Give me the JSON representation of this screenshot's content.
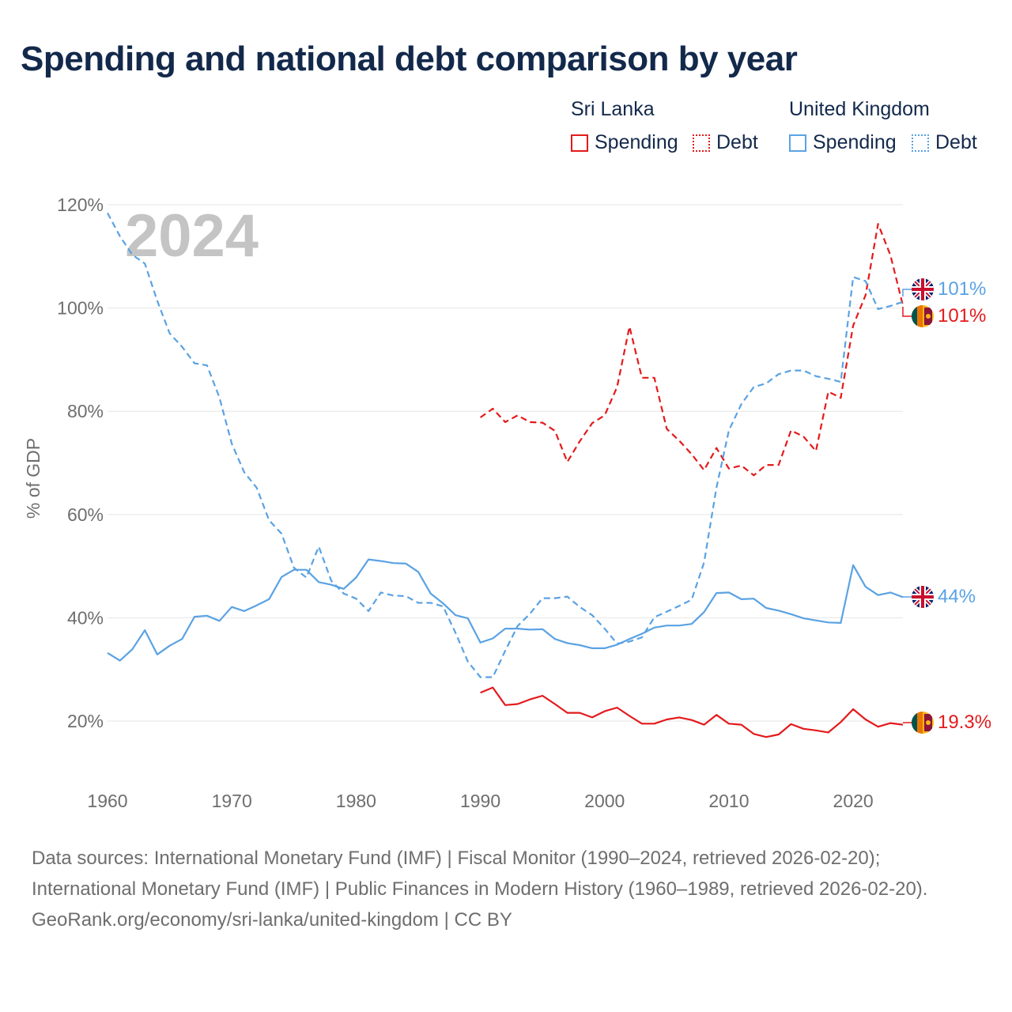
{
  "title": "Spending and national debt comparison by year",
  "legend": {
    "groups": [
      {
        "country": "Sri Lanka",
        "items": [
          {
            "label": "Spending",
            "style": "solid"
          },
          {
            "label": "Debt",
            "style": "dotted"
          }
        ],
        "color": "#e41a1c"
      },
      {
        "country": "United Kingdom",
        "items": [
          {
            "label": "Spending",
            "style": "solid"
          },
          {
            "label": "Debt",
            "style": "dotted"
          }
        ],
        "color": "#5aa2e3"
      }
    ]
  },
  "chart_data": {
    "type": "line",
    "ylabel": "% of GDP",
    "xlabel": "",
    "year_watermark": "2024",
    "xlim": [
      1960,
      2024
    ],
    "ylim": [
      10,
      120
    ],
    "x_ticks": [
      1960,
      1970,
      1980,
      1990,
      2000,
      2010,
      2020
    ],
    "y_ticks": [
      20,
      40,
      60,
      80,
      100,
      120
    ],
    "y_tick_labels": [
      "20%",
      "40%",
      "60%",
      "80%",
      "100%",
      "120%"
    ],
    "grid": true,
    "series": [
      {
        "name": "Sri Lanka Spending",
        "country": "Sri Lanka",
        "measure": "Spending",
        "color": "#e41a1c",
        "style": "solid",
        "start_year": 1990,
        "values": [
          25.5,
          26.5,
          23.1,
          23.3,
          24.2,
          24.9,
          23.3,
          21.6,
          21.6,
          20.7,
          21.9,
          22.6,
          21.0,
          19.5,
          19.5,
          20.3,
          20.7,
          20.2,
          19.3,
          21.2,
          19.5,
          19.3,
          17.5,
          16.9,
          17.4,
          19.4,
          18.5,
          18.2,
          17.8,
          19.8,
          22.3,
          20.3,
          18.9,
          19.6,
          19.3
        ],
        "end_label": "19.3%",
        "flag": "sri-lanka-flag-icon"
      },
      {
        "name": "Sri Lanka Debt",
        "country": "Sri Lanka",
        "measure": "Debt",
        "color": "#e41a1c",
        "style": "dashed",
        "start_year": 1990,
        "values": [
          78.8,
          80.5,
          77.9,
          79.2,
          77.9,
          77.8,
          76.2,
          70.2,
          74.2,
          77.7,
          79.2,
          84.7,
          96.4,
          86.5,
          86.5,
          76.6,
          74.3,
          71.7,
          68.6,
          72.9,
          68.9,
          69.5,
          67.6,
          69.6,
          69.6,
          76.3,
          75.1,
          72.3,
          83.8,
          82.6,
          96.6,
          102.5,
          116.3,
          110.2,
          100.5
        ],
        "end_label": "101%",
        "flag": "sri-lanka-flag-icon"
      },
      {
        "name": "United Kingdom Spending",
        "country": "United Kingdom",
        "measure": "Spending",
        "color": "#5aa2e3",
        "style": "solid",
        "start_year": 1960,
        "values": [
          33.2,
          31.7,
          33.9,
          37.6,
          32.9,
          34.6,
          35.9,
          40.2,
          40.4,
          39.4,
          42.1,
          41.3,
          42.4,
          43.6,
          47.9,
          49.3,
          49.3,
          46.9,
          46.4,
          45.6,
          47.8,
          51.3,
          51.0,
          50.6,
          50.5,
          48.9,
          44.7,
          42.8,
          40.5,
          39.9,
          35.2,
          36.0,
          37.9,
          37.9,
          37.7,
          37.8,
          35.9,
          35.1,
          34.7,
          34.1,
          34.1,
          34.8,
          35.9,
          36.9,
          38.1,
          38.5,
          38.5,
          38.8,
          41.1,
          44.8,
          44.9,
          43.6,
          43.7,
          41.9,
          41.4,
          40.7,
          39.9,
          39.5,
          39.1,
          39.0,
          50.2,
          46.0,
          44.4,
          44.9,
          44.0
        ],
        "end_label": "44%",
        "flag": "united-kingdom-flag-icon"
      },
      {
        "name": "United Kingdom Debt",
        "country": "United Kingdom",
        "measure": "Debt",
        "color": "#5aa2e3",
        "style": "dashed",
        "start_year": 1960,
        "values": [
          118.4,
          113.9,
          110.3,
          108.6,
          101.4,
          95.1,
          92.5,
          89.3,
          88.9,
          82.7,
          73.7,
          68.2,
          65.2,
          58.9,
          56.3,
          49.7,
          47.8,
          53.8,
          47.2,
          44.7,
          43.7,
          41.3,
          44.9,
          44.3,
          44.2,
          42.9,
          42.9,
          42.2,
          37.1,
          31.5,
          28.5,
          28.5,
          33.6,
          38.4,
          40.8,
          43.8,
          43.8,
          44.1,
          42.1,
          40.5,
          37.9,
          35.0,
          35.4,
          36.2,
          40.1,
          41.2,
          42.3,
          43.5,
          50.7,
          65.2,
          76.3,
          81.4,
          84.7,
          85.4,
          87.2,
          87.9,
          87.9,
          86.8,
          86.3,
          85.7,
          106.0,
          105.2,
          99.8,
          100.4,
          101.2
        ],
        "end_label": "101%",
        "flag": "united-kingdom-flag-icon"
      }
    ]
  },
  "footer": {
    "sources": "Data sources: International Monetary Fund (IMF) | Fiscal Monitor (1990–2024, retrieved 2026-02-20); International Monetary Fund (IMF) | Public Finances in Modern History (1960–1989, retrieved 2026-02-20).",
    "link": "GeoRank.org/economy/sri-lanka/united-kingdom | CC BY"
  }
}
